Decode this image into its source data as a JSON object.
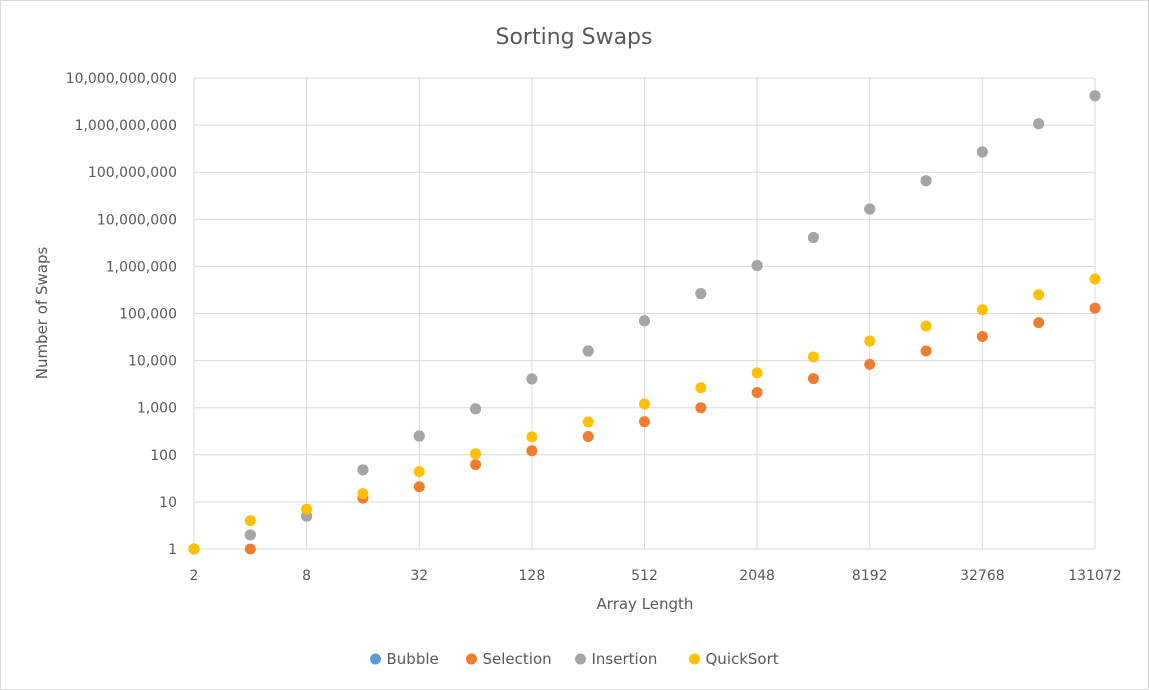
{
  "chart_data": {
    "type": "scatter",
    "title": "Sorting Swaps",
    "xlabel": "Array Length",
    "ylabel": "Number of Swaps",
    "x_scale": "log2",
    "y_scale": "log10",
    "xlim": [
      2,
      131072
    ],
    "ylim": [
      1,
      10000000000
    ],
    "grid": true,
    "legend_position": "bottom",
    "x_tick_labels": [
      "2",
      "8",
      "32",
      "128",
      "512",
      "2048",
      "8192",
      "32768",
      "131072"
    ],
    "y_tick_labels": [
      "1",
      "10",
      "100",
      "1,000",
      "10,000",
      "100,000",
      "1,000,000",
      "10,000,000",
      "100,000,000",
      "1,000,000,000",
      "10,000,000,000"
    ],
    "x": [
      2,
      4,
      8,
      16,
      32,
      64,
      128,
      256,
      512,
      1024,
      2048,
      4096,
      8192,
      16384,
      32768,
      65536,
      131072
    ],
    "series": [
      {
        "name": "Bubble",
        "color": "#5b9bd5",
        "values": [
          1,
          2,
          5,
          48,
          250,
          950,
          4100,
          16000,
          70000,
          265000,
          1040000,
          4100000,
          16500000,
          66000000,
          270000000,
          1070000000,
          4200000000
        ]
      },
      {
        "name": "Selection",
        "color": "#ed7d31",
        "values": [
          1,
          1,
          5,
          12,
          21,
          62,
          122,
          245,
          505,
          1000,
          2100,
          4150,
          8300,
          16000,
          32500,
          64000,
          130000
        ]
      },
      {
        "name": "Insertion",
        "color": "#a5a5a5",
        "values": [
          1,
          2,
          5,
          48,
          250,
          950,
          4100,
          16000,
          70000,
          265000,
          1040000,
          4100000,
          16500000,
          66000000,
          270000000,
          1070000000,
          4200000000
        ]
      },
      {
        "name": "QuickSort",
        "color": "#ffc000",
        "values": [
          1,
          4,
          7,
          15,
          44,
          105,
          240,
          500,
          1200,
          2650,
          5500,
          12000,
          26000,
          54000,
          120000,
          250000,
          540000
        ]
      }
    ]
  }
}
